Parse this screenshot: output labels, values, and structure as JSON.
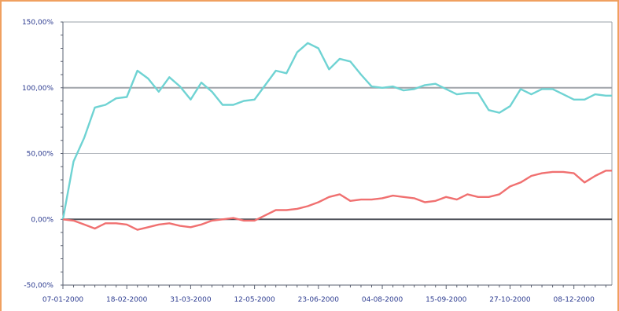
{
  "chart_data": {
    "type": "line",
    "y_ticks": [
      "150,00%",
      "100,00%",
      "50,00%",
      "0,00%",
      "-50,00%"
    ],
    "y_tick_values": [
      150,
      100,
      50,
      0,
      -50
    ],
    "ylim": [
      -50,
      150
    ],
    "x_ticks": [
      "07-01-2000",
      "18-02-2000",
      "31-03-2000",
      "12-05-2000",
      "23-06-2000",
      "04-08-2000",
      "15-09-2000",
      "27-10-2000",
      "08-12-2000"
    ],
    "x_tick_days": [
      7,
      49,
      91,
      133,
      175,
      217,
      259,
      301,
      343
    ],
    "xlim": [
      7,
      368
    ],
    "grid": "horizontal",
    "colors": {
      "teal": "#6fd3d3",
      "red": "#f07070",
      "axis": "#2b3a8f",
      "frame": "#f0a060"
    },
    "series": [
      {
        "color": "#6fd3d3",
        "x": [
          7,
          14,
          21,
          28,
          35,
          42,
          49,
          56,
          63,
          70,
          77,
          84,
          91,
          98,
          105,
          112,
          119,
          126,
          133,
          140,
          147,
          154,
          161,
          168,
          175,
          182,
          189,
          196,
          203,
          210,
          217,
          224,
          231,
          238,
          245,
          252,
          259,
          266,
          273,
          280,
          287,
          294,
          301,
          308,
          315,
          322,
          329,
          336,
          343,
          350,
          357,
          364,
          368
        ],
        "y": [
          0,
          44,
          62,
          85,
          87,
          92,
          93,
          113,
          107,
          97,
          108,
          101,
          91,
          104,
          97,
          87,
          87,
          90,
          91,
          102,
          113,
          111,
          127,
          134,
          130,
          114,
          122,
          120,
          110,
          101,
          100,
          101,
          98,
          99,
          102,
          103,
          99,
          95,
          96,
          96,
          83,
          81,
          86,
          99,
          95,
          99,
          99,
          95,
          91,
          91,
          95,
          94,
          94
        ]
      },
      {
        "color": "#f07070",
        "x": [
          7,
          14,
          21,
          28,
          35,
          42,
          49,
          56,
          63,
          70,
          77,
          84,
          91,
          98,
          105,
          112,
          119,
          126,
          133,
          140,
          147,
          154,
          161,
          168,
          175,
          182,
          189,
          196,
          203,
          210,
          217,
          224,
          231,
          238,
          245,
          252,
          259,
          266,
          273,
          280,
          287,
          294,
          301,
          308,
          315,
          322,
          329,
          336,
          343,
          350,
          357,
          364,
          368
        ],
        "y": [
          0,
          -1,
          -4,
          -7,
          -3,
          -3,
          -4,
          -8,
          -6,
          -4,
          -3,
          -5,
          -6,
          -4,
          -1,
          0,
          1,
          -1,
          -1,
          3,
          7,
          7,
          8,
          10,
          13,
          17,
          19,
          14,
          15,
          15,
          16,
          18,
          17,
          16,
          13,
          14,
          17,
          15,
          19,
          17,
          17,
          19,
          25,
          28,
          33,
          35,
          36,
          36,
          35,
          28,
          33,
          37,
          37
        ]
      }
    ]
  }
}
